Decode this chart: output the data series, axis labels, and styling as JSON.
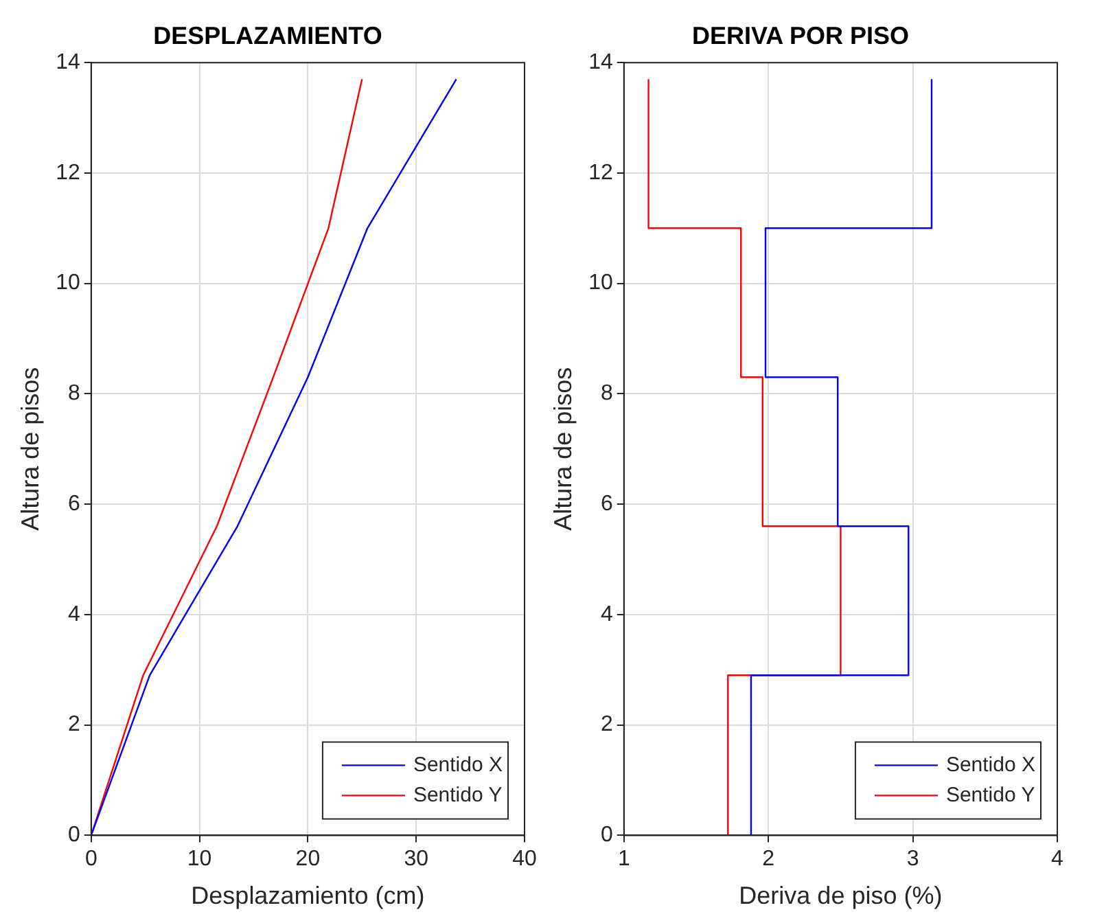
{
  "chart_data": [
    {
      "type": "line",
      "title": "DESPLAZAMIENTO",
      "xlabel": "Desplazamiento (cm)",
      "ylabel": "Altura de pisos",
      "xlim": [
        0,
        40
      ],
      "xticks": [
        0,
        10,
        20,
        30,
        40
      ],
      "ylim": [
        0,
        14
      ],
      "yticks": [
        0,
        2,
        4,
        6,
        8,
        10,
        12,
        14
      ],
      "grid": true,
      "legend": "bottom right",
      "marker": "none",
      "line_style": "solid",
      "series": [
        {
          "name": "Sentido X",
          "color": "#0000ff",
          "x": [
            0,
            5.4,
            13.5,
            20.0,
            25.5,
            33.7
          ],
          "values": [
            0,
            2.9,
            5.6,
            8.3,
            11,
            13.7
          ]
        },
        {
          "name": "Sentido Y",
          "color": "#ff0000",
          "x": [
            0,
            4.8,
            11.6,
            16.8,
            21.9,
            25.0
          ],
          "values": [
            0,
            2.9,
            5.6,
            8.3,
            11,
            13.7
          ]
        }
      ]
    },
    {
      "type": "line",
      "title": "DERIVA POR PISO",
      "xlabel": "Deriva de piso (%)",
      "ylabel": "Altura de pisos",
      "xlim": [
        1,
        4
      ],
      "xticks": [
        1,
        2,
        3,
        4
      ],
      "ylim": [
        0,
        14
      ],
      "yticks": [
        0,
        2,
        4,
        6,
        8,
        10,
        12,
        14
      ],
      "grid": true,
      "legend": "bottom right",
      "marker": "none",
      "line_style": "solid",
      "series": [
        {
          "name": "Sentido X",
          "color": "#0000ff",
          "x": [
            1.88,
            1.88,
            2.97,
            2.97,
            2.48,
            2.48,
            1.98,
            1.98,
            3.13,
            3.13
          ],
          "values": [
            0,
            2.9,
            2.9,
            5.6,
            5.6,
            8.3,
            8.3,
            11,
            11,
            13.7
          ]
        },
        {
          "name": "Sentido Y",
          "color": "#ff0000",
          "x": [
            1.72,
            1.72,
            2.5,
            2.5,
            1.96,
            1.96,
            1.81,
            1.81,
            1.17,
            1.17
          ],
          "values": [
            0,
            2.9,
            2.9,
            5.6,
            5.6,
            8.3,
            8.3,
            11,
            11,
            13.7
          ]
        }
      ]
    }
  ]
}
